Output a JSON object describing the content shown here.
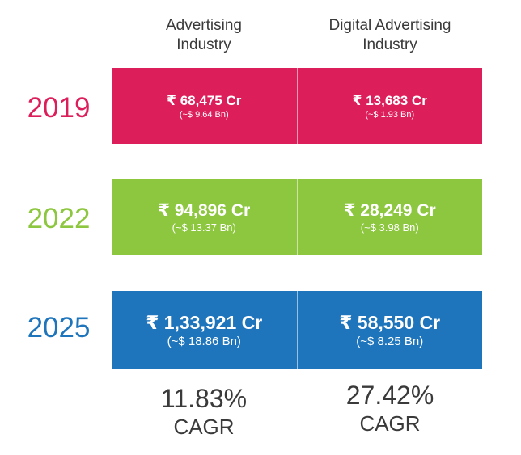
{
  "columns": [
    "Advertising\nIndustry",
    "Digital Advertising\nIndustry"
  ],
  "rows": [
    {
      "year": "2019",
      "color": "#dc1e5b",
      "cells": [
        {
          "amount": "₹ 68,475 Cr",
          "usd": "(~$ 9.64 Bn)"
        },
        {
          "amount": "₹ 13,683 Cr",
          "usd": "(~$ 1.93 Bn)"
        }
      ]
    },
    {
      "year": "2022",
      "color": "#8dc63f",
      "cells": [
        {
          "amount": "₹ 94,896 Cr",
          "usd": "(~$ 13.37 Bn)"
        },
        {
          "amount": "₹ 28,249 Cr",
          "usd": "(~$ 3.98 Bn)"
        }
      ]
    },
    {
      "year": "2025",
      "color": "#1f75bc",
      "cells": [
        {
          "amount": "₹ 1,33,921 Cr",
          "usd": "(~$ 18.86 Bn)"
        },
        {
          "amount": "₹ 58,550 Cr",
          "usd": "(~$ 8.25 Bn)"
        }
      ]
    }
  ],
  "cagr": [
    {
      "value": "11.83%",
      "label": "CAGR"
    },
    {
      "value": "27.42%",
      "label": "CAGR"
    }
  ]
}
